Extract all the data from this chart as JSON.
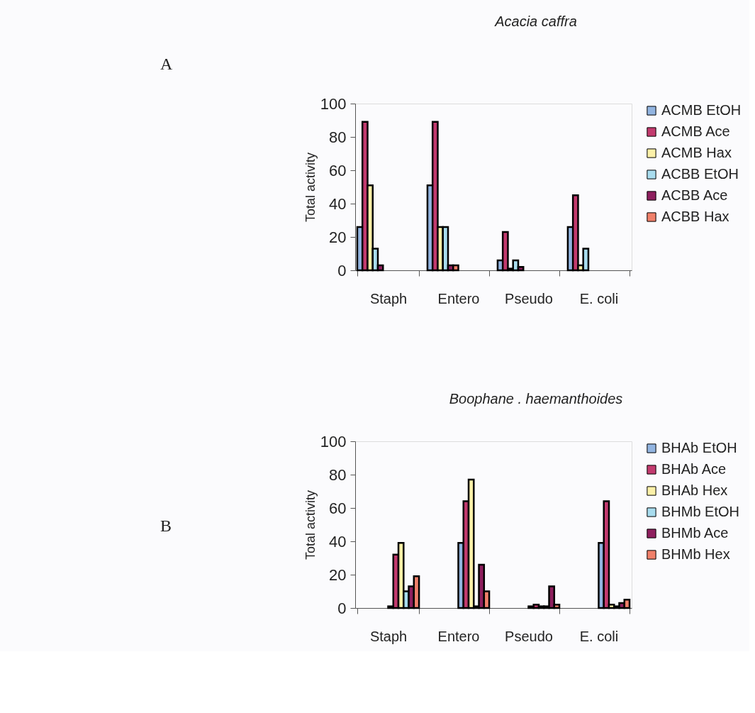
{
  "chart_data": [
    {
      "type": "bar",
      "title": "Acacia caffra",
      "ylabel": "Total activity",
      "annotations": [
        "A"
      ],
      "categories": [
        "Staph",
        "Entero",
        "Pseudo",
        "E. coli"
      ],
      "ylim": [
        0,
        100
      ],
      "yticks": [
        0,
        20,
        40,
        60,
        80,
        100
      ],
      "grid": false,
      "legend": "right",
      "series": [
        {
          "name": "ACMB EtOH",
          "color": "#92b4e0",
          "values": [
            26,
            51,
            6,
            26
          ]
        },
        {
          "name": "ACMB Ace",
          "color": "#c23a6e",
          "values": [
            89,
            89,
            23,
            45
          ]
        },
        {
          "name": "ACMB Hax",
          "color": "#fbf0a8",
          "values": [
            51,
            26,
            1,
            3
          ]
        },
        {
          "name": "ACBB EtOH",
          "color": "#a8dcee",
          "values": [
            13,
            26,
            6,
            13
          ]
        },
        {
          "name": "ACBB Ace",
          "color": "#8e1f5e",
          "values": [
            3,
            3,
            2,
            null
          ]
        },
        {
          "name": "ACBB Hax",
          "color": "#f0806a",
          "values": [
            null,
            3,
            null,
            null
          ]
        }
      ]
    },
    {
      "type": "bar",
      "title": "Boophane . haemanthoides",
      "ylabel": "Total activity",
      "annotations": [
        "B"
      ],
      "categories": [
        "Staph",
        "Entero",
        "Pseudo",
        "E. coli"
      ],
      "ylim": [
        0,
        100
      ],
      "yticks": [
        0,
        20,
        40,
        60,
        80,
        100
      ],
      "grid": false,
      "legend": "right",
      "series": [
        {
          "name": "BHAb EtOH",
          "color": "#92b4e0",
          "values": [
            1,
            39,
            1,
            39
          ]
        },
        {
          "name": "BHAb Ace",
          "color": "#c23a6e",
          "values": [
            32,
            64,
            2,
            64
          ]
        },
        {
          "name": "BHAb Hex",
          "color": "#fbf0a8",
          "values": [
            39,
            77,
            1,
            2
          ]
        },
        {
          "name": "BHMb EtOH",
          "color": "#a8dcee",
          "values": [
            10,
            1,
            1,
            1
          ]
        },
        {
          "name": "BHMb Ace",
          "color": "#8e1f5e",
          "values": [
            13,
            26,
            13,
            3
          ]
        },
        {
          "name": "BHMb Hex",
          "color": "#f0806a",
          "values": [
            19,
            10,
            2,
            5
          ]
        }
      ]
    }
  ]
}
